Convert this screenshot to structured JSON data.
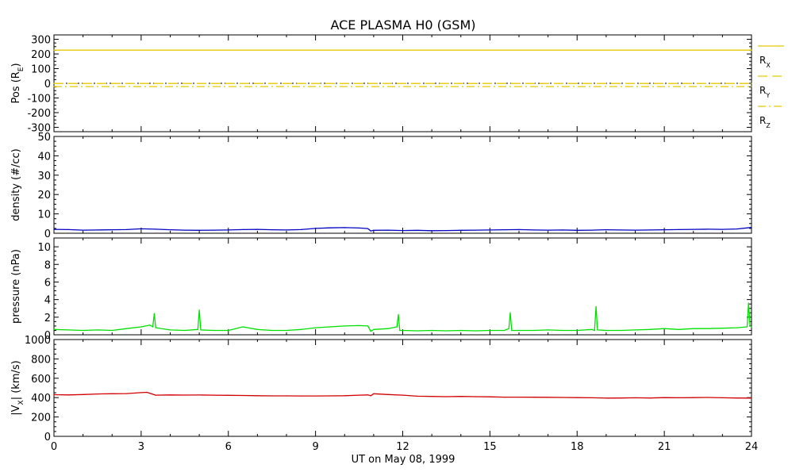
{
  "chart_data": {
    "title": "ACE PLASMA H0 (GSM)",
    "xlabel": "UT on May 08, 1999",
    "x_ticks": [
      0,
      3,
      6,
      9,
      12,
      15,
      18,
      21,
      24
    ],
    "x_tick_labels": [
      "0",
      "3",
      "6",
      "9",
      "12",
      "15",
      "18",
      "21",
      "24"
    ],
    "xlim": [
      0,
      24
    ],
    "panels": [
      {
        "type": "line",
        "ylabel": "Pos (R",
        "ylabel_sub": "E",
        "ylabel_suffix": ")",
        "ylim": [
          -330,
          330
        ],
        "y_ticks": [
          300,
          200,
          100,
          0,
          -100,
          -200,
          -300
        ],
        "y_tick_labels": [
          "300",
          "200",
          "100",
          "0",
          "-100",
          "-200",
          "-300"
        ],
        "series": [
          {
            "name": "R",
            "name_sub": "X",
            "color": "#e6c800",
            "dash": "solid",
            "x": [
              0,
              24
            ],
            "values": [
              226,
              226
            ]
          },
          {
            "name": "R",
            "name_sub": "Y",
            "color": "#e6c800",
            "dash": "long-dash",
            "x": [
              0,
              24
            ],
            "values": [
              -1,
              -1
            ]
          },
          {
            "name": "R",
            "name_sub": "Z",
            "color": "#e6c800",
            "dash": "dash-dot",
            "x": [
              0,
              24
            ],
            "values": [
              -22,
              -22
            ]
          }
        ],
        "reference_line": {
          "value": 0,
          "color": "#000000",
          "dash": "dotted"
        }
      },
      {
        "type": "line",
        "ylabel": "density (#/cc)",
        "ylim": [
          0,
          50
        ],
        "y_ticks": [
          0,
          10,
          20,
          30,
          40,
          50
        ],
        "y_tick_labels": [
          "0",
          "10",
          "20",
          "30",
          "40",
          "50"
        ],
        "series": [
          {
            "color": "#0000c0",
            "x": [
              0,
              0.5,
              1,
              1.5,
              2,
              2.5,
              3,
              3.5,
              4,
              4.5,
              5,
              5.5,
              6,
              6.5,
              7,
              7.5,
              8,
              8.5,
              9,
              9.5,
              10,
              10.5,
              10.8,
              10.9,
              11,
              11.5,
              12,
              12.5,
              13,
              13.5,
              14,
              14.5,
              15,
              15.5,
              16,
              16.5,
              17,
              17.5,
              18,
              18.5,
              19,
              19.5,
              20,
              20.5,
              21,
              21.5,
              22,
              22.5,
              23,
              23.5,
              24
            ],
            "values": [
              2.0,
              1.9,
              1.6,
              1.7,
              1.8,
              1.9,
              2.3,
              2.1,
              1.8,
              1.6,
              1.5,
              1.6,
              1.7,
              1.9,
              2.0,
              1.8,
              1.7,
              1.9,
              2.5,
              2.8,
              2.9,
              2.7,
              2.4,
              1.2,
              1.5,
              1.6,
              1.4,
              1.5,
              1.3,
              1.4,
              1.5,
              1.6,
              1.7,
              1.8,
              1.9,
              1.7,
              1.6,
              1.7,
              1.5,
              1.6,
              1.8,
              1.7,
              1.6,
              1.7,
              1.8,
              1.9,
              2.0,
              2.1,
              2.0,
              2.2,
              3.0
            ]
          }
        ]
      },
      {
        "type": "line",
        "ylabel": "pressure (nPa)",
        "ylim": [
          0,
          11
        ],
        "y_ticks": [
          0,
          2,
          4,
          6,
          8,
          10
        ],
        "y_tick_labels": [
          "0",
          "2",
          "4",
          "6",
          "8",
          "10"
        ],
        "series": [
          {
            "color": "#00e000",
            "x": [
              0,
              0.5,
              1,
              1.5,
              2,
              2.5,
              3,
              3.3,
              3.4,
              3.45,
              3.5,
              4,
              4.5,
              4.95,
              5.0,
              5.05,
              5.5,
              6,
              6.5,
              7,
              7.5,
              8,
              8.5,
              9,
              9.5,
              10,
              10.5,
              10.8,
              10.9,
              11,
              11.5,
              11.8,
              11.85,
              11.9,
              12,
              12.5,
              13,
              13.5,
              14,
              14.5,
              15,
              15.5,
              15.65,
              15.7,
              15.75,
              16,
              16.5,
              17,
              17.5,
              18,
              18.5,
              18.6,
              18.65,
              18.7,
              19,
              19.5,
              20,
              20.5,
              21,
              21.5,
              22,
              22.5,
              23,
              23.5,
              23.85,
              23.9,
              23.95,
              24
            ],
            "values": [
              0.6,
              0.55,
              0.5,
              0.55,
              0.5,
              0.7,
              0.9,
              1.1,
              0.9,
              2.4,
              0.8,
              0.55,
              0.5,
              0.6,
              2.8,
              0.55,
              0.5,
              0.5,
              0.9,
              0.6,
              0.5,
              0.5,
              0.6,
              0.8,
              0.9,
              1.0,
              1.05,
              1.0,
              0.4,
              0.6,
              0.7,
              0.9,
              2.3,
              0.5,
              0.5,
              0.45,
              0.5,
              0.45,
              0.5,
              0.45,
              0.5,
              0.5,
              0.7,
              2.5,
              0.5,
              0.5,
              0.5,
              0.55,
              0.5,
              0.5,
              0.6,
              0.5,
              3.2,
              0.55,
              0.5,
              0.5,
              0.55,
              0.6,
              0.7,
              0.6,
              0.7,
              0.7,
              0.75,
              0.8,
              0.9,
              3.6,
              1.0,
              0.9
            ]
          }
        ]
      },
      {
        "type": "line",
        "ylabel": "|V",
        "ylabel_sub": "X",
        "ylabel_suffix": "| (km/s)",
        "ylim": [
          0,
          1000
        ],
        "y_ticks": [
          0,
          200,
          400,
          600,
          800,
          1000
        ],
        "y_tick_labels": [
          "0",
          "200",
          "400",
          "600",
          "800",
          "1000"
        ],
        "series": [
          {
            "color": "#d00000",
            "x": [
              0,
              0.5,
              1,
              1.5,
              2,
              2.5,
              3,
              3.2,
              3.5,
              4,
              4.5,
              5,
              5.5,
              6,
              6.5,
              7,
              7.5,
              8,
              8.5,
              9,
              9.5,
              10,
              10.5,
              10.8,
              10.9,
              11,
              11.5,
              12,
              12.5,
              13,
              13.5,
              14,
              14.5,
              15,
              15.5,
              16,
              16.5,
              17,
              17.5,
              18,
              18.5,
              19,
              19.5,
              20,
              20.5,
              21,
              21.5,
              22,
              22.5,
              23,
              23.5,
              24
            ],
            "values": [
              430,
              428,
              432,
              438,
              440,
              442,
              452,
              455,
              425,
              428,
              426,
              427,
              425,
              424,
              422,
              420,
              418,
              418,
              417,
              417,
              418,
              420,
              425,
              428,
              420,
              440,
              432,
              425,
              415,
              412,
              410,
              412,
              410,
              408,
              405,
              405,
              404,
              403,
              402,
              400,
              398,
              395,
              396,
              398,
              396,
              400,
              398,
              400,
              402,
              398,
              396,
              395
            ]
          }
        ]
      }
    ]
  }
}
